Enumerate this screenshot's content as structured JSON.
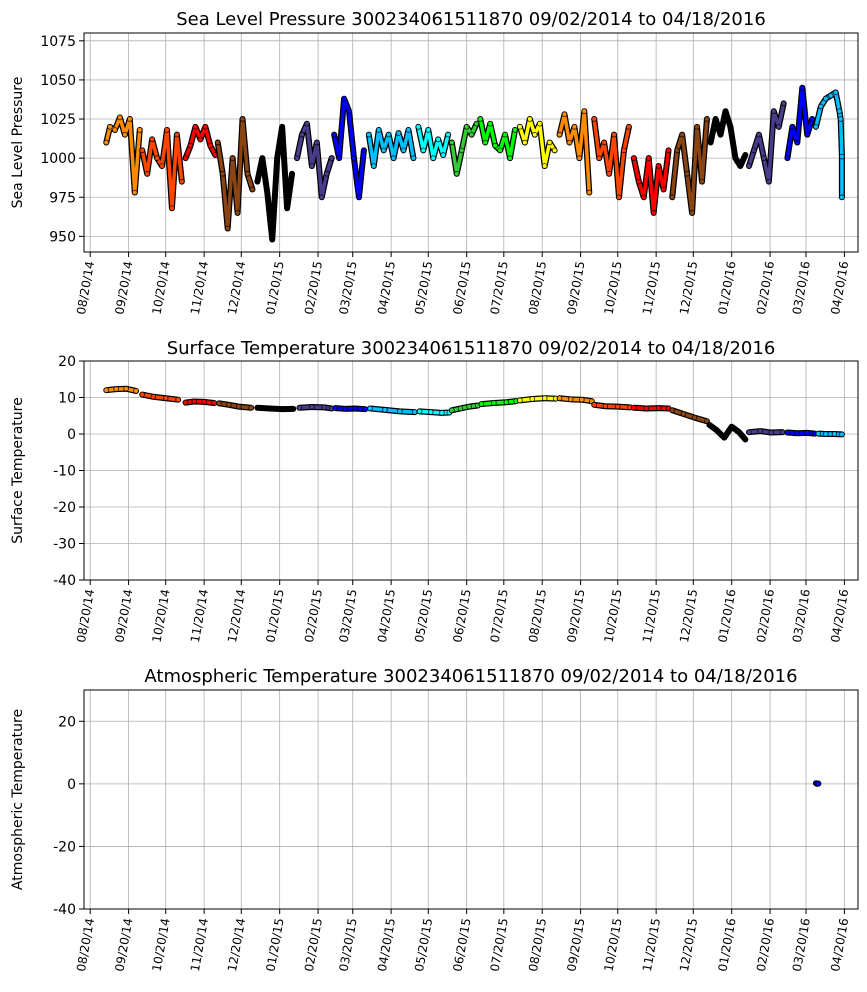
{
  "chart_data": [
    {
      "type": "scatter",
      "title": "Sea Level Pressure 300234061511870  09/02/2014 to 04/18/2016",
      "xlabel": "",
      "ylabel": "Sea Level Pressure",
      "ylim": [
        940,
        1080
      ],
      "yticks": [
        950,
        975,
        1000,
        1025,
        1050,
        1075
      ],
      "xlim": [
        "2014-08-15",
        "2016-05-01"
      ],
      "xticks": [
        "08/20/14",
        "09/20/14",
        "10/20/14",
        "11/20/14",
        "12/20/14",
        "01/20/15",
        "02/20/15",
        "03/20/15",
        "04/20/15",
        "05/20/15",
        "06/20/15",
        "07/20/15",
        "08/20/15",
        "09/20/15",
        "10/20/15",
        "11/20/15",
        "12/20/15",
        "01/20/16",
        "02/20/16",
        "03/20/16",
        "04/20/16"
      ],
      "grid": true,
      "series": [
        {
          "color": "#ff8c00",
          "x": [
            "2014-09-02",
            "2014-09-05",
            "2014-09-09",
            "2014-09-13",
            "2014-09-17",
            "2014-09-21",
            "2014-09-25",
            "2014-09-29"
          ],
          "y": [
            1010,
            1020,
            1018,
            1026,
            1015,
            1025,
            978,
            1018
          ]
        },
        {
          "color": "#ff4500",
          "x": [
            "2014-10-01",
            "2014-10-05",
            "2014-10-09",
            "2014-10-13",
            "2014-10-17",
            "2014-10-21",
            "2014-10-25",
            "2014-10-29",
            "2014-11-02"
          ],
          "y": [
            1005,
            990,
            1012,
            1000,
            995,
            1018,
            968,
            1015,
            985
          ]
        },
        {
          "color": "#ff0000",
          "x": [
            "2014-11-05",
            "2014-11-09",
            "2014-11-13",
            "2014-11-17",
            "2014-11-21",
            "2014-11-25",
            "2014-11-29"
          ],
          "y": [
            1000,
            1008,
            1020,
            1012,
            1020,
            1008,
            1002
          ]
        },
        {
          "color": "#8b4513",
          "x": [
            "2014-12-01",
            "2014-12-05",
            "2014-12-09",
            "2014-12-13",
            "2014-12-17",
            "2014-12-21",
            "2014-12-25",
            "2014-12-29"
          ],
          "y": [
            1010,
            990,
            955,
            1000,
            965,
            1025,
            990,
            980
          ]
        },
        {
          "color": "#000000",
          "x": [
            "2015-01-02",
            "2015-01-06",
            "2015-01-10",
            "2015-01-14",
            "2015-01-18",
            "2015-01-22",
            "2015-01-26",
            "2015-01-30"
          ],
          "y": [
            985,
            1000,
            978,
            948,
            1000,
            1020,
            968,
            990
          ]
        },
        {
          "color": "#483d8b",
          "x": [
            "2015-02-03",
            "2015-02-07",
            "2015-02-11",
            "2015-02-15",
            "2015-02-19",
            "2015-02-23",
            "2015-02-27",
            "2015-03-03"
          ],
          "y": [
            1000,
            1015,
            1022,
            995,
            1010,
            975,
            990,
            1000
          ]
        },
        {
          "color": "#0000ff",
          "x": [
            "2015-03-05",
            "2015-03-09",
            "2015-03-13",
            "2015-03-17",
            "2015-03-21",
            "2015-03-25",
            "2015-03-29"
          ],
          "y": [
            1015,
            1000,
            1038,
            1030,
            1000,
            975,
            1005
          ]
        },
        {
          "color": "#00bfff",
          "x": [
            "2015-04-02",
            "2015-04-06",
            "2015-04-10",
            "2015-04-14",
            "2015-04-18",
            "2015-04-22",
            "2015-04-26",
            "2015-04-30",
            "2015-05-04",
            "2015-05-08"
          ],
          "y": [
            1015,
            995,
            1018,
            1005,
            1015,
            1000,
            1016,
            1005,
            1018,
            1000
          ]
        },
        {
          "color": "#00ffff",
          "x": [
            "2015-05-12",
            "2015-05-16",
            "2015-05-20",
            "2015-05-24",
            "2015-05-28",
            "2015-06-01",
            "2015-06-05"
          ],
          "y": [
            1020,
            1005,
            1018,
            1000,
            1012,
            1002,
            1015
          ]
        },
        {
          "color": "#32cd32",
          "x": [
            "2015-06-08",
            "2015-06-12",
            "2015-06-16",
            "2015-06-20",
            "2015-06-24",
            "2015-06-28"
          ],
          "y": [
            1010,
            990,
            1005,
            1020,
            1015,
            1022
          ]
        },
        {
          "color": "#00ff00",
          "x": [
            "2015-07-01",
            "2015-07-05",
            "2015-07-09",
            "2015-07-13",
            "2015-07-17",
            "2015-07-21",
            "2015-07-25",
            "2015-07-29"
          ],
          "y": [
            1025,
            1010,
            1022,
            1008,
            1005,
            1015,
            1000,
            1018
          ]
        },
        {
          "color": "#ffff00",
          "x": [
            "2015-08-02",
            "2015-08-06",
            "2015-08-10",
            "2015-08-14",
            "2015-08-18",
            "2015-08-22",
            "2015-08-26",
            "2015-08-30"
          ],
          "y": [
            1020,
            1010,
            1025,
            1015,
            1022,
            995,
            1010,
            1005
          ]
        },
        {
          "color": "#ff8c00",
          "x": [
            "2015-09-03",
            "2015-09-07",
            "2015-09-11",
            "2015-09-15",
            "2015-09-19",
            "2015-09-23",
            "2015-09-27"
          ],
          "y": [
            1015,
            1028,
            1010,
            1020,
            1000,
            1030,
            978
          ]
        },
        {
          "color": "#ff4500",
          "x": [
            "2015-10-01",
            "2015-10-05",
            "2015-10-09",
            "2015-10-13",
            "2015-10-17",
            "2015-10-21",
            "2015-10-25",
            "2015-10-29"
          ],
          "y": [
            1025,
            1000,
            1010,
            990,
            1015,
            975,
            1005,
            1020
          ]
        },
        {
          "color": "#ff0000",
          "x": [
            "2015-11-02",
            "2015-11-06",
            "2015-11-10",
            "2015-11-14",
            "2015-11-18",
            "2015-11-22",
            "2015-11-26",
            "2015-11-30"
          ],
          "y": [
            1000,
            985,
            975,
            1000,
            965,
            995,
            980,
            1005
          ]
        },
        {
          "color": "#8b4513",
          "x": [
            "2015-12-03",
            "2015-12-07",
            "2015-12-11",
            "2015-12-15",
            "2015-12-19",
            "2015-12-23",
            "2015-12-27",
            "2015-12-31"
          ],
          "y": [
            975,
            1005,
            1015,
            990,
            965,
            1020,
            985,
            1025
          ]
        },
        {
          "color": "#000000",
          "x": [
            "2016-01-03",
            "2016-01-07",
            "2016-01-11",
            "2016-01-15",
            "2016-01-19",
            "2016-01-23",
            "2016-01-27",
            "2016-01-31"
          ],
          "y": [
            1010,
            1025,
            1015,
            1030,
            1020,
            1000,
            995,
            1002
          ]
        },
        {
          "color": "#483d8b",
          "x": [
            "2016-02-03",
            "2016-02-07",
            "2016-02-11",
            "2016-02-15",
            "2016-02-19",
            "2016-02-23",
            "2016-02-27",
            "2016-03-02"
          ],
          "y": [
            995,
            1005,
            1015,
            1000,
            985,
            1030,
            1020,
            1035
          ]
        },
        {
          "color": "#0000ff",
          "x": [
            "2016-03-05",
            "2016-03-09",
            "2016-03-13",
            "2016-03-17",
            "2016-03-21",
            "2016-03-25"
          ],
          "y": [
            1000,
            1020,
            1010,
            1045,
            1015,
            1025
          ]
        },
        {
          "color": "#00bfff",
          "x": [
            "2016-03-28",
            "2016-04-01",
            "2016-04-05",
            "2016-04-09",
            "2016-04-13",
            "2016-04-16",
            "2016-04-17",
            "2016-04-18",
            "2016-04-18"
          ],
          "y": [
            1020,
            1033,
            1038,
            1040,
            1042,
            1030,
            1025,
            1001,
            975
          ]
        }
      ]
    },
    {
      "type": "scatter",
      "title": "Surface Temperature 300234061511870  09/02/2014 to 04/18/2016",
      "xlabel": "",
      "ylabel": "Surface Temperature",
      "ylim": [
        -40,
        20
      ],
      "yticks": [
        20,
        10,
        0,
        -10,
        -20,
        -30,
        -40
      ],
      "xlim": [
        "2014-08-15",
        "2016-05-01"
      ],
      "xticks": [
        "08/20/14",
        "09/20/14",
        "10/20/14",
        "11/20/14",
        "12/20/14",
        "01/20/15",
        "02/20/15",
        "03/20/15",
        "04/20/15",
        "05/20/15",
        "06/20/15",
        "07/20/15",
        "08/20/15",
        "09/20/15",
        "10/20/15",
        "11/20/15",
        "12/20/15",
        "01/20/16",
        "02/20/16",
        "03/20/16",
        "04/20/16"
      ],
      "grid": true,
      "series": [
        {
          "color": "#ff8c00",
          "x": [
            "2014-09-02",
            "2014-09-10",
            "2014-09-18",
            "2014-09-26"
          ],
          "y": [
            12,
            12.3,
            12.4,
            11.8
          ]
        },
        {
          "color": "#ff4500",
          "x": [
            "2014-10-01",
            "2014-10-10",
            "2014-10-20",
            "2014-10-30"
          ],
          "y": [
            10.8,
            10.2,
            9.8,
            9.4
          ]
        },
        {
          "color": "#ff0000",
          "x": [
            "2014-11-05",
            "2014-11-12",
            "2014-11-20",
            "2014-11-28"
          ],
          "y": [
            8.6,
            8.9,
            8.8,
            8.5
          ]
        },
        {
          "color": "#8b4513",
          "x": [
            "2014-12-02",
            "2014-12-10",
            "2014-12-18",
            "2014-12-28"
          ],
          "y": [
            8.4,
            8.0,
            7.5,
            7.2
          ]
        },
        {
          "color": "#000000",
          "x": [
            "2015-01-02",
            "2015-01-12",
            "2015-01-22",
            "2015-01-31"
          ],
          "y": [
            7.2,
            7.0,
            6.8,
            6.9
          ]
        },
        {
          "color": "#483d8b",
          "x": [
            "2015-02-05",
            "2015-02-15",
            "2015-02-25",
            "2015-03-03"
          ],
          "y": [
            7.2,
            7.4,
            7.3,
            7.0
          ]
        },
        {
          "color": "#0000ff",
          "x": [
            "2015-03-06",
            "2015-03-14",
            "2015-03-22",
            "2015-03-30"
          ],
          "y": [
            7.1,
            6.9,
            7.0,
            6.8
          ]
        },
        {
          "color": "#00bfff",
          "x": [
            "2015-04-03",
            "2015-04-15",
            "2015-04-27",
            "2015-05-09"
          ],
          "y": [
            7.0,
            6.6,
            6.2,
            6.0
          ]
        },
        {
          "color": "#00ffff",
          "x": [
            "2015-05-13",
            "2015-05-22",
            "2015-05-31",
            "2015-06-06"
          ],
          "y": [
            6.2,
            6.0,
            5.8,
            5.9
          ]
        },
        {
          "color": "#32cd32",
          "x": [
            "2015-06-08",
            "2015-06-15",
            "2015-06-22",
            "2015-06-29"
          ],
          "y": [
            6.5,
            7.0,
            7.5,
            7.8
          ]
        },
        {
          "color": "#00ff00",
          "x": [
            "2015-07-02",
            "2015-07-12",
            "2015-07-22",
            "2015-07-30"
          ],
          "y": [
            8.2,
            8.5,
            8.7,
            9.0
          ]
        },
        {
          "color": "#ffff00",
          "x": [
            "2015-08-02",
            "2015-08-12",
            "2015-08-22",
            "2015-08-31"
          ],
          "y": [
            9.2,
            9.6,
            9.8,
            9.7
          ]
        },
        {
          "color": "#ff8c00",
          "x": [
            "2015-09-03",
            "2015-09-12",
            "2015-09-21",
            "2015-09-29"
          ],
          "y": [
            9.8,
            9.5,
            9.4,
            9.0
          ]
        },
        {
          "color": "#ff4500",
          "x": [
            "2015-10-01",
            "2015-10-10",
            "2015-10-20",
            "2015-10-30"
          ],
          "y": [
            8.0,
            7.6,
            7.5,
            7.3
          ]
        },
        {
          "color": "#ff0000",
          "x": [
            "2015-11-02",
            "2015-11-12",
            "2015-11-22",
            "2015-11-30"
          ],
          "y": [
            7.2,
            7.0,
            7.1,
            7.0
          ]
        },
        {
          "color": "#8b4513",
          "x": [
            "2015-12-03",
            "2015-12-12",
            "2015-12-21",
            "2015-12-31"
          ],
          "y": [
            6.5,
            5.5,
            4.5,
            3.5
          ]
        },
        {
          "color": "#000000",
          "x": [
            "2016-01-02",
            "2016-01-08",
            "2016-01-14",
            "2016-01-20",
            "2016-01-26",
            "2016-01-31"
          ],
          "y": [
            2.5,
            1.0,
            -1.0,
            2.0,
            0.5,
            -1.5
          ]
        },
        {
          "color": "#483d8b",
          "x": [
            "2016-02-03",
            "2016-02-12",
            "2016-02-21",
            "2016-03-01"
          ],
          "y": [
            0.5,
            0.8,
            0.4,
            0.5
          ]
        },
        {
          "color": "#0000ff",
          "x": [
            "2016-03-05",
            "2016-03-13",
            "2016-03-21",
            "2016-03-27"
          ],
          "y": [
            0.4,
            0.2,
            0.3,
            0.1
          ]
        },
        {
          "color": "#00bfff",
          "x": [
            "2016-03-30",
            "2016-04-05",
            "2016-04-12",
            "2016-04-18"
          ],
          "y": [
            0.1,
            0.0,
            0.0,
            -0.1
          ]
        }
      ]
    },
    {
      "type": "scatter",
      "title": "Atmospheric Temperature 300234061511870  09/02/2014 to 04/18/2016",
      "xlabel": "",
      "ylabel": "Atmospheric Temperature",
      "ylim": [
        -40,
        30
      ],
      "yticks": [
        20,
        0,
        -20,
        -40
      ],
      "xlim": [
        "2014-08-15",
        "2016-05-01"
      ],
      "xticks": [
        "08/20/14",
        "09/20/14",
        "10/20/14",
        "11/20/14",
        "12/20/14",
        "01/20/15",
        "02/20/15",
        "03/20/15",
        "04/20/15",
        "05/20/15",
        "06/20/15",
        "07/20/15",
        "08/20/15",
        "09/20/15",
        "10/20/15",
        "11/20/15",
        "12/20/15",
        "01/20/16",
        "02/20/16",
        "03/20/16",
        "04/20/16"
      ],
      "grid": true,
      "series": [
        {
          "color": "#0000ff",
          "x": [
            "2016-03-28",
            "2016-03-29",
            "2016-03-30"
          ],
          "y": [
            0.2,
            0.0,
            0.1
          ]
        }
      ]
    }
  ]
}
